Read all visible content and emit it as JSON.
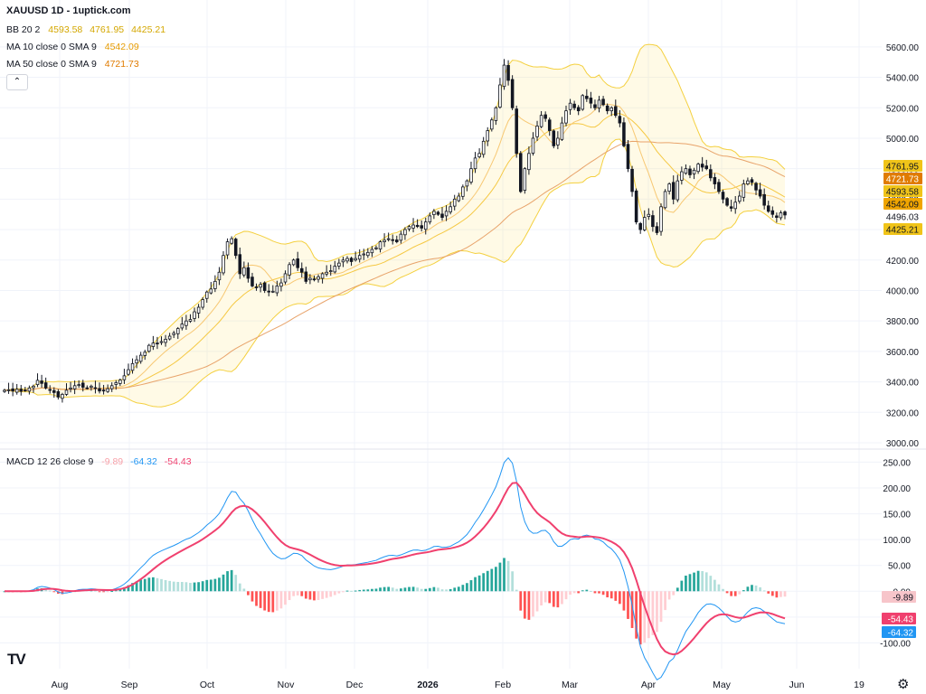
{
  "header": {
    "title": "XAUUSD 1D - 1uptick.com"
  },
  "legend": {
    "bb": {
      "label": "BB 20 2",
      "values": [
        "4593.58",
        "4761.95",
        "4425.21"
      ],
      "color": "#e6b800"
    },
    "ma10": {
      "label": "MA 10 close 0 SMA 9",
      "value": "4542.09",
      "color": "#f0a500"
    },
    "ma50": {
      "label": "MA 50 close 0 SMA 9",
      "value": "4721.73",
      "color": "#e07b00"
    },
    "macd": {
      "label": "MACD 12 26 close 9",
      "values": [
        "-9.89",
        "-64.32",
        "-54.43"
      ],
      "colors": [
        "#f7a1a8",
        "#2196f3",
        "#f0406e"
      ]
    }
  },
  "icons": {
    "collapse": "chevron-up-icon",
    "logo": "tradingview-logo",
    "settings": "gear-icon"
  },
  "chart_data": {
    "type": "candlestick",
    "symbol": "XAUUSD",
    "price_axis": {
      "ticks": [
        "5600.00",
        "5400.00",
        "5200.00",
        "5000.00",
        "4800.00",
        "4600.00",
        "4400.00",
        "4200.00",
        "4000.00",
        "3800.00",
        "3600.00",
        "3400.00",
        "3200.00",
        "3000.00"
      ],
      "range": [
        3000,
        5700
      ]
    },
    "macd_axis": {
      "ticks": [
        "250.00",
        "200.00",
        "150.00",
        "100.00",
        "50.00",
        "0.00",
        "-50.00",
        "-100.00"
      ],
      "range": [
        -150,
        270
      ]
    },
    "time_axis": {
      "labels": [
        "Aug",
        "Sep",
        "Oct",
        "Nov",
        "Dec",
        "2026",
        "Feb",
        "Mar",
        "Apr",
        "May",
        "Jun",
        "19"
      ],
      "bold": "2026"
    },
    "price_tags": [
      {
        "text": "4761.95",
        "color": "#f0c419",
        "value": 4761.95
      },
      {
        "text": "4721.73",
        "color": "#e07b00",
        "value": 4721.73,
        "textColor": "#ffffff"
      },
      {
        "text": "4593.58",
        "color": "#f0c419",
        "value": 4593.58
      },
      {
        "text": "4542.09",
        "color": "#f0a500",
        "value": 4542.09
      },
      {
        "text": "4496.03",
        "color": "#ffffff",
        "value": 4496.03
      },
      {
        "text": "4425.21",
        "color": "#f0c419",
        "value": 4425.21
      }
    ],
    "macd_tags": [
      {
        "text": "-9.89",
        "color": "#f7c5ca",
        "value": -9.89,
        "textColor": "#131722"
      },
      {
        "text": "-54.43",
        "color": "#f0406e",
        "value": -54.43,
        "textColor": "#ffffff"
      },
      {
        "text": "-64.32",
        "color": "#2196f3",
        "value": -64.32,
        "textColor": "#ffffff"
      }
    ],
    "close_series": [
      3345,
      3348,
      3340,
      3352,
      3338,
      3345,
      3360,
      3372,
      3410,
      3390,
      3360,
      3345,
      3330,
      3300,
      3318,
      3345,
      3360,
      3375,
      3382,
      3365,
      3360,
      3372,
      3358,
      3340,
      3345,
      3355,
      3375,
      3395,
      3412,
      3440,
      3480,
      3520,
      3545,
      3575,
      3595,
      3640,
      3655,
      3650,
      3665,
      3680,
      3700,
      3720,
      3750,
      3780,
      3800,
      3810,
      3860,
      3890,
      3940,
      3990,
      4010,
      4060,
      4120,
      4230,
      4320,
      4340,
      4230,
      4110,
      4150,
      4080,
      4030,
      4020,
      4040,
      4000,
      3990,
      3995,
      4030,
      4050,
      4110,
      4170,
      4200,
      4150,
      4120,
      4060,
      4080,
      4070,
      4090,
      4110,
      4120,
      4130,
      4160,
      4180,
      4200,
      4210,
      4190,
      4210,
      4230,
      4240,
      4250,
      4270,
      4280,
      4320,
      4330,
      4340,
      4330,
      4320,
      4370,
      4400,
      4420,
      4430,
      4420,
      4410,
      4450,
      4490,
      4520,
      4500,
      4480,
      4520,
      4550,
      4600,
      4620,
      4680,
      4720,
      4800,
      4870,
      4900,
      4980,
      5050,
      5120,
      5200,
      5350,
      5480,
      5380,
      5200,
      4900,
      4650,
      4800,
      4900,
      5000,
      5080,
      5150,
      5130,
      5050,
      4950,
      5000,
      5100,
      5180,
      5230,
      5200,
      5180,
      5280,
      5260,
      5230,
      5200,
      5250,
      5220,
      5180,
      5200,
      5150,
      5100,
      4950,
      4800,
      4650,
      4450,
      4400,
      4480,
      4500,
      4420,
      4380,
      4550,
      4650,
      4700,
      4600,
      4720,
      4780,
      4800,
      4760,
      4790,
      4830,
      4810,
      4800,
      4740,
      4700,
      4650,
      4600,
      4560,
      4540,
      4580,
      4620,
      4700,
      4720,
      4710,
      4660,
      4620,
      4560,
      4520,
      4500,
      4480,
      4510,
      4496
    ],
    "bb": {
      "period": 20,
      "mult": 2,
      "last": {
        "basis": 4593.58,
        "upper": 4761.95,
        "lower": 4425.21
      }
    },
    "ma10": {
      "last": 4542.09
    },
    "ma50": {
      "last": 4721.73
    },
    "macd": {
      "fast": 12,
      "slow": 26,
      "signal": 9,
      "last": {
        "hist": -9.89,
        "macd": -64.32,
        "signal": -54.43
      }
    }
  }
}
